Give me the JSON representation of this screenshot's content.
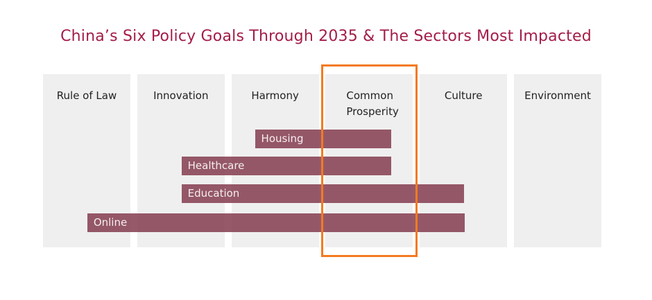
{
  "title": "China’s Six Policy Goals Through 2035 & The Sectors Most Impacted",
  "columns": [
    "Rule of Law",
    "Innovation",
    "Harmony",
    "Common Prosperity",
    "Culture",
    "Environment"
  ],
  "highlighted_column": "Common Prosperity",
  "sectors": [
    {
      "label": "Housing",
      "start": 2.25,
      "end": 3.7
    },
    {
      "label": "Healthcare",
      "start": 1.47,
      "end": 3.7
    },
    {
      "label": "Education",
      "start": 1.47,
      "end": 4.47
    },
    {
      "label": "Online",
      "start": 0.47,
      "end": 4.48
    }
  ],
  "colors": {
    "title": "#a31d47",
    "bar": "#935a68",
    "highlight": "#f47a20",
    "column": "#efefef"
  }
}
